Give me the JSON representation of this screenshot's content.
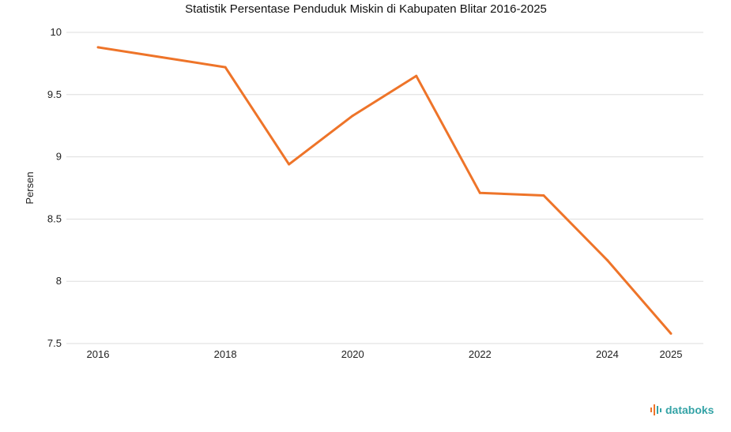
{
  "chart_data": {
    "type": "line",
    "title": "Statistik Persentase Penduduk Miskin di Kabupaten Blitar 2016-2025",
    "xlabel": "",
    "ylabel": "Persen",
    "x": [
      2016,
      2017,
      2018,
      2019,
      2020,
      2021,
      2022,
      2023,
      2024,
      2025
    ],
    "x_tick_labels": [
      "2016",
      "2018",
      "2020",
      "2022",
      "2024",
      "2025"
    ],
    "y_tick_labels": [
      "10",
      "9.5",
      "9",
      "8.5",
      "8",
      "7.5"
    ],
    "ylim": [
      7.5,
      10
    ],
    "grid": true,
    "series": [
      {
        "values": [
          9.88,
          9.8,
          9.72,
          8.94,
          9.33,
          9.65,
          8.71,
          8.69,
          8.17,
          7.58
        ],
        "color": "#ee7429"
      }
    ]
  },
  "brand": {
    "name": "databoks",
    "icon": "databoks-logo-icon",
    "color": "#34a3a6"
  }
}
